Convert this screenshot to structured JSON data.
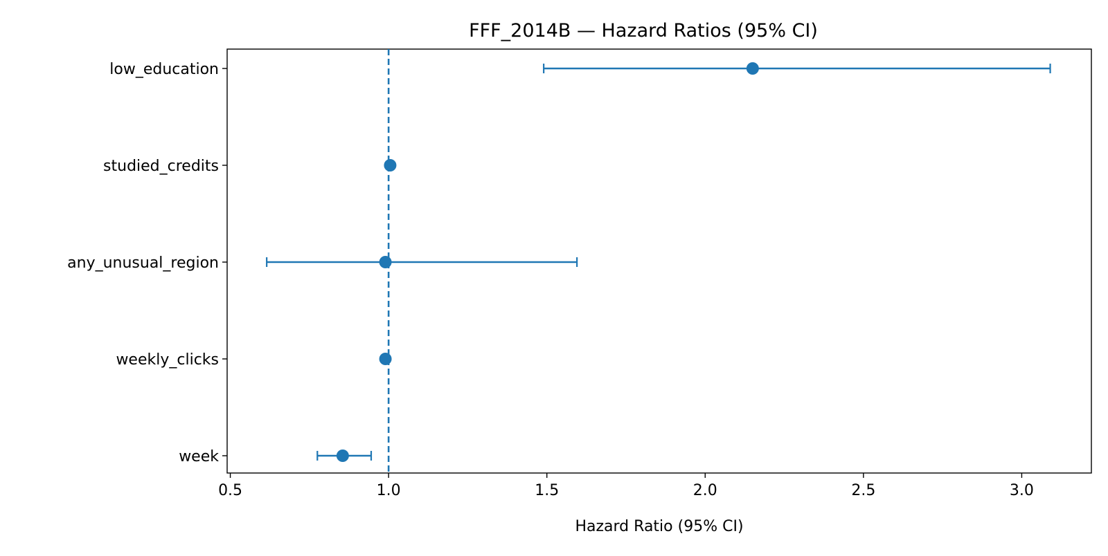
{
  "chart_data": {
    "type": "scatter",
    "title": "FFF_2014B — Hazard Ratios (95% CI)",
    "xlabel": "Hazard Ratio (95% CI)",
    "ylabel": "",
    "xlim": [
      0.49,
      3.22
    ],
    "xticks": [
      0.5,
      1.0,
      1.5,
      2.0,
      2.5,
      3.0
    ],
    "xtick_labels": [
      "0.5",
      "1.0",
      "1.5",
      "2.0",
      "2.5",
      "3.0"
    ],
    "reference_line": 1.0,
    "grid": false,
    "color": "#1f77b4",
    "points": [
      {
        "label": "low_education",
        "hr": 2.15,
        "lower": 1.49,
        "upper": 3.09
      },
      {
        "label": "studied_credits",
        "hr": 1.005,
        "lower": 1.0,
        "upper": 1.01
      },
      {
        "label": "any_unusual_region",
        "hr": 0.99,
        "lower": 0.615,
        "upper": 1.595
      },
      {
        "label": "weekly_clicks",
        "hr": 0.99,
        "lower": 0.985,
        "upper": 0.995
      },
      {
        "label": "week",
        "hr": 0.855,
        "lower": 0.775,
        "upper": 0.945
      }
    ]
  }
}
